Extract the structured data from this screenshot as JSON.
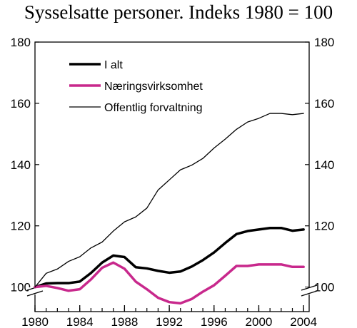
{
  "chart_data": {
    "type": "line",
    "title": "Sysselsatte personer. Indeks 1980 = 100",
    "xlabel": "",
    "ylabel": "",
    "xlim": [
      1980,
      2004.5
    ],
    "ylim": [
      92,
      180
    ],
    "x_ticks": [
      1980,
      1984,
      1988,
      1992,
      1996,
      2000,
      2004
    ],
    "y_ticks": [
      100,
      120,
      140,
      160,
      180
    ],
    "axis_break": "bottom",
    "grid": false,
    "legend_position": "top-left",
    "x": [
      1980,
      1981,
      1982,
      1983,
      1984,
      1985,
      1986,
      1987,
      1988,
      1989,
      1990,
      1991,
      1992,
      1993,
      1994,
      1995,
      1996,
      1997,
      1998,
      1999,
      2000,
      2001,
      2002,
      2003,
      2004
    ],
    "series": [
      {
        "name": "I alt",
        "color": "#000000",
        "width": 3.5,
        "values": [
          100,
          101.2,
          101.3,
          101.3,
          101.8,
          104.6,
          108.0,
          110.3,
          109.8,
          106.5,
          106.1,
          105.3,
          104.7,
          105.1,
          106.7,
          108.8,
          111.3,
          114.4,
          117.3,
          118.3,
          118.8,
          119.3,
          119.3,
          118.4,
          118.8
        ]
      },
      {
        "name": "Næringsvirksomhet",
        "color": "#c8288c",
        "width": 3.5,
        "values": [
          100,
          100.4,
          99.7,
          98.8,
          99.3,
          102.5,
          106.3,
          108.0,
          106.0,
          101.8,
          99.3,
          96.5,
          95.1,
          94.7,
          96.1,
          98.5,
          100.6,
          103.7,
          106.9,
          106.9,
          107.4,
          107.4,
          107.4,
          106.6,
          106.6
        ]
      },
      {
        "name": "Offentlig forvaltning",
        "color": "#000000",
        "width": 1.3,
        "values": [
          100,
          104.5,
          105.9,
          108.4,
          109.9,
          112.8,
          114.7,
          118.3,
          121.3,
          122.9,
          125.8,
          131.7,
          135.0,
          138.3,
          139.8,
          142.0,
          145.4,
          148.3,
          151.5,
          153.9,
          155.1,
          156.7,
          156.7,
          156.3,
          156.7
        ]
      }
    ]
  }
}
